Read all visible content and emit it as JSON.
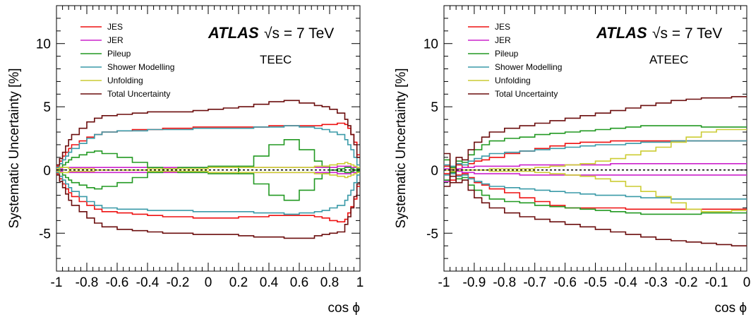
{
  "chart_data": [
    {
      "type": "line",
      "step": true,
      "atlas_label": "ATLAS",
      "energy_label": "√s = 7 TeV",
      "observable": "TEEC",
      "xlabel": "cos ϕ",
      "ylabel": "Systematic Uncertainty [%]",
      "xlim": [
        -1,
        1
      ],
      "ylim": [
        -8,
        13
      ],
      "xticks": [
        -1,
        -0.8,
        -0.6,
        -0.4,
        -0.2,
        0,
        0.2,
        0.4,
        0.6,
        0.8,
        1
      ],
      "xtick_labels": [
        "-1",
        "-0.8",
        "-0.6",
        "-0.4",
        "-0.2",
        "0",
        "0.2",
        "0.4",
        "0.6",
        "0.8",
        "1"
      ],
      "yticks": [
        -5,
        0,
        5,
        10
      ],
      "ytick_labels": [
        "-5",
        "0",
        "5",
        "10"
      ],
      "reference_line": 0,
      "legend_position": "top-left",
      "x_edges": [
        -1,
        -0.98,
        -0.96,
        -0.94,
        -0.92,
        -0.9,
        -0.85,
        -0.8,
        -0.75,
        -0.7,
        -0.6,
        -0.5,
        -0.4,
        -0.3,
        -0.2,
        -0.1,
        0,
        0.1,
        0.2,
        0.3,
        0.4,
        0.5,
        0.6,
        0.7,
        0.75,
        0.8,
        0.85,
        0.9,
        0.92,
        0.94,
        0.96,
        0.98,
        1
      ],
      "series": [
        {
          "name": "JES",
          "color": "#ee1111",
          "up": [
            0.3,
            0.7,
            1.1,
            1.4,
            1.7,
            2.0,
            2.3,
            2.6,
            2.8,
            3.0,
            3.1,
            3.2,
            3.2,
            3.3,
            3.3,
            3.4,
            3.4,
            3.4,
            3.4,
            3.4,
            3.5,
            3.5,
            3.5,
            3.5,
            3.6,
            3.6,
            3.7,
            3.6,
            3.3,
            2.8,
            2.2,
            1.2
          ],
          "down": [
            -0.3,
            -0.7,
            -1.1,
            -1.5,
            -1.8,
            -2.1,
            -2.5,
            -2.8,
            -3.1,
            -3.3,
            -3.4,
            -3.5,
            -3.6,
            -3.7,
            -3.7,
            -3.8,
            -3.8,
            -3.8,
            -3.7,
            -3.7,
            -3.6,
            -3.6,
            -3.6,
            -3.7,
            -3.8,
            -4.0,
            -4.1,
            -3.9,
            -3.4,
            -2.9,
            -2.3,
            -1.3
          ]
        },
        {
          "name": "JER",
          "color": "#cc22cc",
          "up": [
            0.1,
            0.1,
            0.2,
            0.2,
            0.2,
            0.2,
            0.2,
            0.2,
            0.2,
            0.2,
            0.2,
            0.2,
            0.2,
            0.2,
            0.2,
            0.2,
            0.2,
            0.2,
            0.2,
            0.2,
            0.2,
            0.2,
            0.2,
            0.2,
            0.2,
            0.2,
            0.3,
            0.3,
            0.3,
            0.2,
            0.2,
            0.1
          ],
          "down": [
            -0.1,
            -0.1,
            -0.2,
            -0.2,
            -0.2,
            -0.2,
            -0.2,
            -0.2,
            -0.2,
            -0.2,
            -0.2,
            -0.2,
            -0.2,
            -0.2,
            -0.2,
            -0.2,
            -0.2,
            -0.2,
            -0.2,
            -0.2,
            -0.2,
            -0.2,
            -0.2,
            -0.2,
            -0.2,
            -0.2,
            -0.3,
            -0.3,
            -0.3,
            -0.2,
            -0.2,
            -0.1
          ]
        },
        {
          "name": "Pileup",
          "color": "#229922",
          "up": [
            -0.2,
            0.2,
            0.4,
            0.6,
            0.8,
            1.0,
            1.2,
            1.4,
            1.5,
            1.3,
            1.0,
            0.6,
            0.2,
            -0.1,
            -0.2,
            -0.2,
            -0.3,
            -0.3,
            0.3,
            1.1,
            2.0,
            2.4,
            1.6,
            0.7,
            0.3,
            0.0,
            -0.1,
            -0.2,
            -0.2,
            -0.1,
            0.0,
            0.1
          ],
          "down": [
            0.2,
            -0.2,
            -0.4,
            -0.6,
            -0.8,
            -1.0,
            -1.2,
            -1.4,
            -1.5,
            -1.3,
            -1.0,
            -0.6,
            -0.2,
            0.1,
            0.2,
            0.2,
            0.3,
            0.3,
            -0.3,
            -1.1,
            -2.0,
            -2.4,
            -1.6,
            -0.7,
            -0.3,
            0.0,
            0.1,
            0.2,
            0.2,
            0.1,
            0.0,
            -0.1
          ]
        },
        {
          "name": "Shower Modelling",
          "color": "#3a9aa8",
          "up": [
            0.2,
            0.5,
            0.8,
            1.1,
            1.4,
            1.7,
            2.1,
            2.5,
            2.8,
            3.0,
            3.1,
            3.1,
            3.2,
            3.2,
            3.2,
            3.3,
            3.3,
            3.3,
            3.3,
            3.4,
            3.4,
            3.5,
            3.4,
            3.3,
            3.2,
            3.0,
            2.8,
            2.4,
            2.0,
            1.6,
            1.0,
            0.4
          ],
          "down": [
            -0.2,
            -0.5,
            -0.8,
            -1.1,
            -1.4,
            -1.7,
            -2.1,
            -2.5,
            -2.8,
            -3.0,
            -3.1,
            -3.1,
            -3.2,
            -3.2,
            -3.2,
            -3.3,
            -3.3,
            -3.3,
            -3.3,
            -3.4,
            -3.4,
            -3.5,
            -3.4,
            -3.3,
            -3.2,
            -3.0,
            -2.8,
            -2.4,
            -2.0,
            -1.6,
            -1.0,
            -0.4
          ]
        },
        {
          "name": "Unfolding",
          "color": "#cccc33",
          "up": [
            0.1,
            0.2,
            0.2,
            0.2,
            0.1,
            0.1,
            0.1,
            0.1,
            0.0,
            0.0,
            0.0,
            0.0,
            0.1,
            0.1,
            0.1,
            0.1,
            0.2,
            0.2,
            0.2,
            0.2,
            0.2,
            0.2,
            0.2,
            0.3,
            0.3,
            0.4,
            0.5,
            0.6,
            0.5,
            0.4,
            0.3,
            0.2
          ],
          "down": [
            -0.1,
            -0.2,
            -0.2,
            -0.2,
            -0.1,
            -0.1,
            -0.1,
            -0.1,
            0.0,
            0.0,
            0.0,
            0.0,
            -0.1,
            -0.1,
            -0.1,
            -0.1,
            -0.2,
            -0.2,
            -0.2,
            -0.2,
            -0.2,
            -0.2,
            -0.2,
            -0.3,
            -0.3,
            -0.4,
            -0.5,
            -0.6,
            -0.5,
            -0.4,
            -0.3,
            -0.2
          ]
        },
        {
          "name": "Total Uncertainty",
          "color": "#6b0d0d",
          "up": [
            0.4,
            0.9,
            1.4,
            1.9,
            2.4,
            2.8,
            3.3,
            3.8,
            4.1,
            4.3,
            4.4,
            4.5,
            4.6,
            4.6,
            4.6,
            4.7,
            4.8,
            4.9,
            5.0,
            5.2,
            5.4,
            5.5,
            5.3,
            5.1,
            5.0,
            4.8,
            4.5,
            4.0,
            3.5,
            2.8,
            2.0,
            1.0
          ],
          "down": [
            -0.4,
            -0.9,
            -1.4,
            -1.9,
            -2.4,
            -2.8,
            -3.3,
            -3.8,
            -4.2,
            -4.5,
            -4.7,
            -4.8,
            -4.9,
            -5.0,
            -5.0,
            -5.1,
            -5.1,
            -5.1,
            -5.2,
            -5.3,
            -5.3,
            -5.4,
            -5.4,
            -5.2,
            -5.1,
            -5.0,
            -4.9,
            -4.3,
            -3.7,
            -3.0,
            -2.1,
            -1.1
          ]
        }
      ]
    },
    {
      "type": "line",
      "step": true,
      "atlas_label": "ATLAS",
      "energy_label": "√s = 7 TeV",
      "observable": "ATEEC",
      "xlabel": "cos ϕ",
      "ylabel": "Systematic Uncertainty [%]",
      "xlim": [
        -1,
        0
      ],
      "ylim": [
        -8,
        13
      ],
      "xticks": [
        -1,
        -0.9,
        -0.8,
        -0.7,
        -0.6,
        -0.5,
        -0.4,
        -0.3,
        -0.2,
        -0.1,
        0
      ],
      "xtick_labels": [
        "-1",
        "-0.9",
        "-0.8",
        "-0.7",
        "-0.6",
        "-0.5",
        "-0.4",
        "-0.3",
        "-0.2",
        "-0.1",
        "0"
      ],
      "yticks": [
        -5,
        0,
        5,
        10
      ],
      "ytick_labels": [
        "-5",
        "0",
        "5",
        "10"
      ],
      "reference_line": 0,
      "legend_position": "top-left",
      "x_edges": [
        -1,
        -0.98,
        -0.96,
        -0.94,
        -0.92,
        -0.9,
        -0.875,
        -0.85,
        -0.8,
        -0.75,
        -0.7,
        -0.65,
        -0.6,
        -0.55,
        -0.5,
        -0.45,
        -0.4,
        -0.35,
        -0.3,
        -0.25,
        -0.2,
        -0.15,
        -0.1,
        -0.05,
        0
      ],
      "series": [
        {
          "name": "JES",
          "color": "#ee1111",
          "up": [
            0.3,
            -0.8,
            0.4,
            0.2,
            0.5,
            0.7,
            0.8,
            1.0,
            1.3,
            1.5,
            1.7,
            1.9,
            2.1,
            2.2,
            2.2,
            2.3,
            2.3,
            2.3,
            2.3,
            2.3,
            2.3,
            2.3,
            2.3,
            2.3
          ],
          "down": [
            -0.3,
            -0.2,
            -0.4,
            -0.3,
            -0.6,
            -1.0,
            -1.2,
            -1.5,
            -1.8,
            -2.2,
            -2.5,
            -2.8,
            -3.0,
            -3.0,
            -3.0,
            -3.0,
            -3.1,
            -3.1,
            -3.1,
            -3.1,
            -3.1,
            -3.1,
            -3.1,
            -3.1
          ]
        },
        {
          "name": "JER",
          "color": "#cc22cc",
          "up": [
            0.1,
            0.1,
            0.1,
            0.2,
            0.2,
            0.3,
            0.3,
            0.3,
            0.3,
            0.4,
            0.4,
            0.4,
            0.4,
            0.4,
            0.4,
            0.5,
            0.5,
            0.5,
            0.5,
            0.5,
            0.5,
            0.5,
            0.5,
            0.5
          ],
          "down": [
            -0.9,
            -0.1,
            -0.1,
            -0.2,
            -0.2,
            -0.3,
            -0.3,
            -0.3,
            -0.3,
            -0.4,
            -0.4,
            -0.4,
            -0.4,
            -0.4,
            -0.4,
            -0.4,
            -0.4,
            -0.4,
            -0.4,
            -0.4,
            -0.4,
            -0.4,
            -0.4,
            -0.4
          ]
        },
        {
          "name": "Pileup",
          "color": "#229922",
          "up": [
            0.8,
            0.2,
            0.7,
            0.6,
            1.2,
            1.6,
            2.0,
            2.3,
            2.5,
            2.6,
            2.8,
            2.9,
            3.0,
            3.1,
            3.2,
            3.3,
            3.4,
            3.5,
            3.5,
            3.5,
            3.5,
            3.4,
            3.4,
            3.4
          ],
          "down": [
            -0.8,
            -0.2,
            -0.7,
            -0.6,
            -1.2,
            -1.6,
            -2.0,
            -2.3,
            -2.5,
            -2.6,
            -2.8,
            -2.9,
            -3.0,
            -3.1,
            -3.2,
            -3.3,
            -3.4,
            -3.5,
            -3.5,
            -3.5,
            -3.5,
            -3.4,
            -3.4,
            -3.4
          ]
        },
        {
          "name": "Shower Modelling",
          "color": "#3a9aa8",
          "up": [
            0.4,
            0.3,
            0.5,
            0.4,
            0.7,
            0.9,
            1.1,
            1.3,
            1.4,
            1.5,
            1.6,
            1.7,
            1.8,
            1.9,
            2.0,
            2.0,
            2.1,
            2.2,
            2.2,
            2.3,
            2.3,
            2.3,
            2.3,
            2.3
          ],
          "down": [
            -0.4,
            -0.3,
            -0.5,
            -0.4,
            -0.7,
            -0.9,
            -1.1,
            -1.3,
            -1.4,
            -1.5,
            -1.6,
            -1.7,
            -1.8,
            -1.9,
            -2.0,
            -2.0,
            -2.1,
            -2.2,
            -2.2,
            -2.3,
            -2.3,
            -2.3,
            -2.3,
            -2.3
          ]
        },
        {
          "name": "Unfolding",
          "color": "#cccc33",
          "up": [
            0.0,
            -0.1,
            0.0,
            0.0,
            0.0,
            0.0,
            0.0,
            0.1,
            0.1,
            0.1,
            0.2,
            0.3,
            0.4,
            0.5,
            0.7,
            0.9,
            1.2,
            1.5,
            1.8,
            2.2,
            2.6,
            3.0,
            3.2,
            3.2
          ],
          "down": [
            0.0,
            0.1,
            0.0,
            0.0,
            0.0,
            0.0,
            0.0,
            -0.1,
            -0.1,
            -0.1,
            -0.2,
            -0.3,
            -0.4,
            -0.5,
            -0.7,
            -0.9,
            -1.3,
            -1.7,
            -2.1,
            -2.6,
            -3.1,
            -3.3,
            -3.3,
            -3.2
          ]
        },
        {
          "name": "Total Uncertainty",
          "color": "#6b0d0d",
          "up": [
            1.3,
            -1.0,
            1.0,
            0.8,
            1.6,
            2.2,
            2.6,
            3.0,
            3.3,
            3.5,
            3.7,
            3.9,
            4.1,
            4.3,
            4.5,
            4.7,
            4.9,
            5.1,
            5.3,
            5.5,
            5.6,
            5.7,
            5.7,
            5.8
          ],
          "down": [
            -1.3,
            -0.5,
            -1.0,
            -0.8,
            -1.6,
            -2.2,
            -2.6,
            -3.0,
            -3.4,
            -3.7,
            -3.9,
            -4.1,
            -4.3,
            -4.5,
            -4.7,
            -4.9,
            -5.1,
            -5.3,
            -5.5,
            -5.6,
            -5.7,
            -5.8,
            -5.9,
            -6.0
          ]
        }
      ]
    }
  ]
}
